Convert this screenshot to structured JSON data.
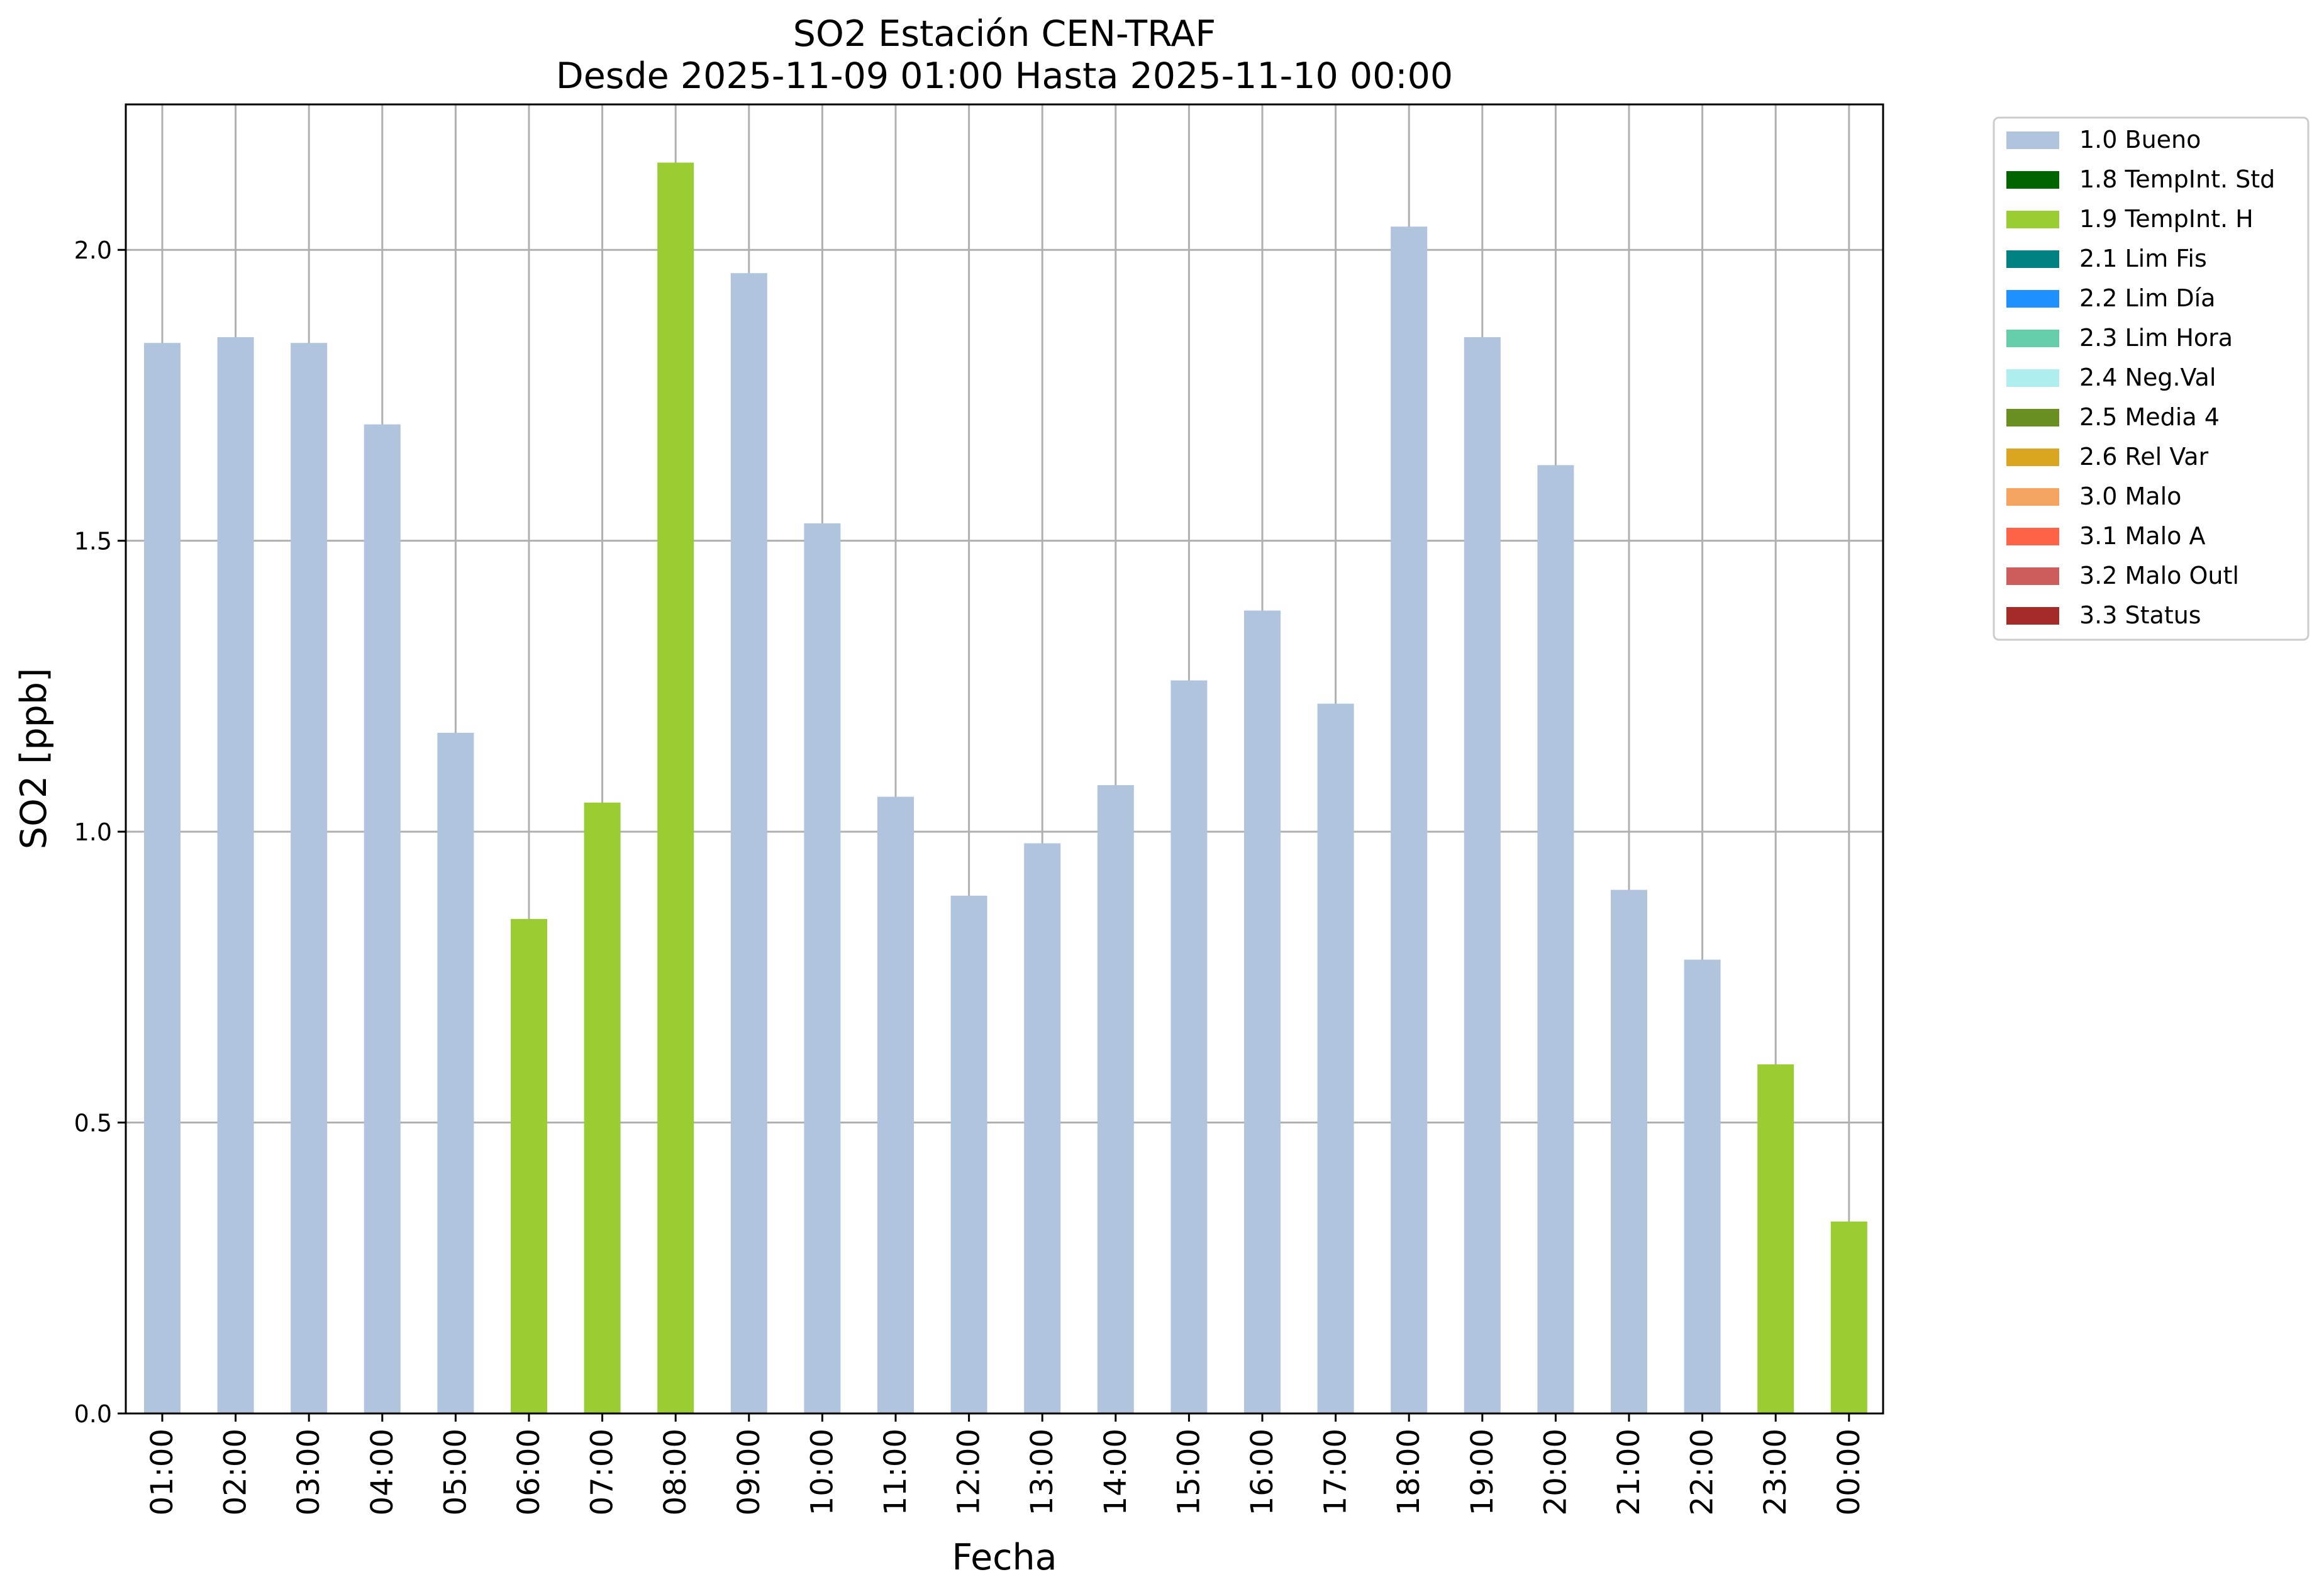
{
  "chart_data": {
    "type": "bar",
    "title": "SO2 Estación CEN-TRAF",
    "subtitle": "Desde 2025-11-09 01:00 Hasta 2025-11-10 00:00",
    "xlabel": "Fecha",
    "ylabel": "SO2 [ppb]",
    "ylim": [
      0,
      2.25
    ],
    "yticks": [
      "0.0",
      "0.5",
      "1.0",
      "1.5",
      "2.0"
    ],
    "grid": true,
    "legend_placement": "outside-top-right",
    "categories": [
      "01:00",
      "02:00",
      "03:00",
      "04:00",
      "05:00",
      "06:00",
      "07:00",
      "08:00",
      "09:00",
      "10:00",
      "11:00",
      "12:00",
      "13:00",
      "14:00",
      "15:00",
      "16:00",
      "17:00",
      "18:00",
      "19:00",
      "20:00",
      "21:00",
      "22:00",
      "23:00",
      "00:00"
    ],
    "values": [
      1.84,
      1.85,
      1.84,
      1.7,
      1.17,
      0.85,
      1.05,
      2.15,
      1.96,
      1.53,
      1.06,
      0.89,
      0.98,
      1.08,
      1.26,
      1.38,
      1.22,
      2.04,
      1.85,
      1.63,
      0.9,
      0.78,
      0.6,
      0.33
    ],
    "flags": [
      "1.0 Bueno",
      "1.0 Bueno",
      "1.0 Bueno",
      "1.0 Bueno",
      "1.0 Bueno",
      "1.9 TempInt. H",
      "1.9 TempInt. H",
      "1.9 TempInt. H",
      "1.0 Bueno",
      "1.0 Bueno",
      "1.0 Bueno",
      "1.0 Bueno",
      "1.0 Bueno",
      "1.0 Bueno",
      "1.0 Bueno",
      "1.0 Bueno",
      "1.0 Bueno",
      "1.0 Bueno",
      "1.0 Bueno",
      "1.0 Bueno",
      "1.0 Bueno",
      "1.0 Bueno",
      "1.9 TempInt. H",
      "1.9 TempInt. H"
    ],
    "legend": [
      {
        "name": "1.0 Bueno",
        "color": "#b0c4de"
      },
      {
        "name": "1.8 TempInt. Std",
        "color": "#006400"
      },
      {
        "name": "1.9 TempInt. H",
        "color": "#9acd32"
      },
      {
        "name": "2.1 Lim Fis",
        "color": "#008080"
      },
      {
        "name": "2.2 Lim Día",
        "color": "#1e90ff"
      },
      {
        "name": "2.3 Lim Hora",
        "color": "#66cdaa"
      },
      {
        "name": "2.4 Neg.Val",
        "color": "#afeeee"
      },
      {
        "name": "2.5 Media 4",
        "color": "#6b8e23"
      },
      {
        "name": "2.6 Rel Var",
        "color": "#daa520"
      },
      {
        "name": "3.0 Malo",
        "color": "#f4a460"
      },
      {
        "name": "3.1 Malo A",
        "color": "#ff6347"
      },
      {
        "name": "3.2 Malo Outl",
        "color": "#cd5c5c"
      },
      {
        "name": "3.3 Status",
        "color": "#a52a2a"
      }
    ]
  }
}
